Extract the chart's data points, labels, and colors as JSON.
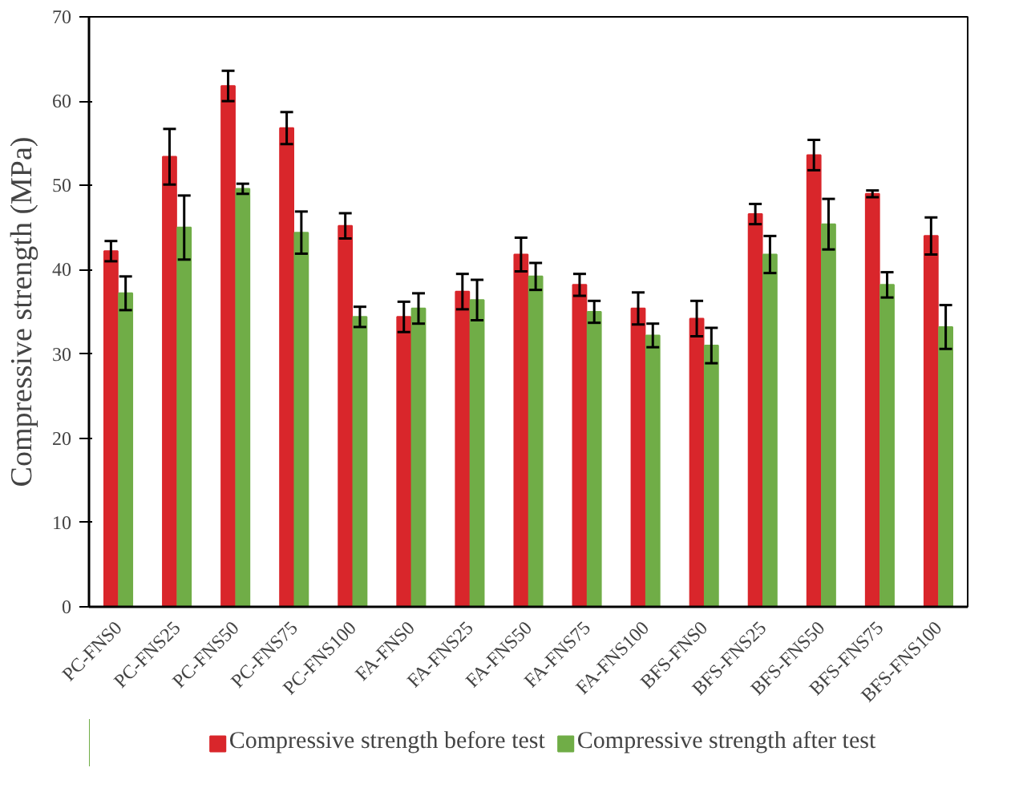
{
  "chart_data": {
    "type": "bar",
    "ylabel": "Compressive strength (MPa)",
    "categories": [
      "PC-FNS0",
      "PC-FNS25",
      "PC-FNS50",
      "PC-FNS75",
      "PC-FNS100",
      "FA-FNS0",
      "FA-FNS25",
      "FA-FNS50",
      "FA-FNS75",
      "FA-FNS100",
      "BFS-FNS0",
      "BFS-FNS25",
      "BFS-FNS50",
      "BFS-FNS75",
      "BFS-FNS100"
    ],
    "series": [
      {
        "name": "Compressive strength before test",
        "color": "#d9262b",
        "values": [
          42.2,
          53.4,
          61.8,
          56.8,
          45.2,
          34.4,
          37.4,
          41.8,
          38.2,
          35.4,
          34.2,
          46.6,
          53.6,
          49.0,
          44.0
        ],
        "errors": [
          1.2,
          3.3,
          1.8,
          1.9,
          1.5,
          1.8,
          2.1,
          2.0,
          1.3,
          1.9,
          2.1,
          1.2,
          1.8,
          0.4,
          2.2
        ]
      },
      {
        "name": "Compressive strength after test",
        "color": "#70ad47",
        "values": [
          37.2,
          45.0,
          49.6,
          44.4,
          34.4,
          35.4,
          36.4,
          39.2,
          35.0,
          32.2,
          31.0,
          41.8,
          45.4,
          38.2,
          33.2
        ],
        "errors": [
          2.0,
          3.8,
          0.6,
          2.5,
          1.2,
          1.8,
          2.4,
          1.6,
          1.3,
          1.4,
          2.1,
          2.2,
          3.0,
          1.5,
          2.6
        ]
      }
    ],
    "ylim": [
      0,
      70
    ],
    "yticks": [
      0,
      10,
      20,
      30,
      40,
      50,
      60,
      70
    ],
    "grid": false,
    "legend": "bottom"
  }
}
